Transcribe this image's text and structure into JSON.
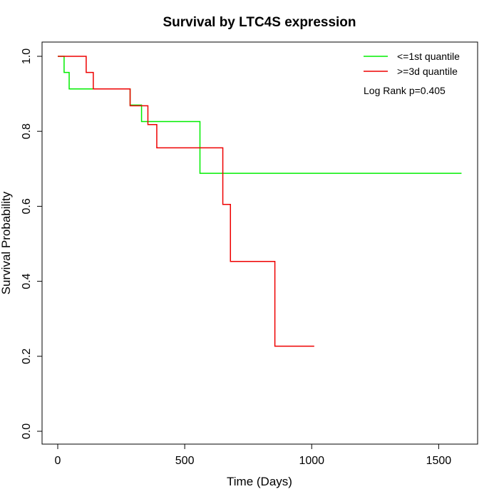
{
  "chart_data": {
    "type": "line",
    "title": "Survival by LTC4S expression",
    "xlabel": "Time (Days)",
    "ylabel": "Survival Probability",
    "xlim": [
      0,
      1640
    ],
    "ylim": [
      0,
      1.0
    ],
    "x_ticks": [
      0,
      500,
      1000,
      1500
    ],
    "y_ticks": [
      0.0,
      0.2,
      0.4,
      0.6,
      0.8,
      1.0
    ],
    "x_tick_labels": [
      "0",
      "500",
      "1000",
      "1500"
    ],
    "y_tick_labels": [
      "0.0",
      "0.2",
      "0.4",
      "0.6",
      "0.8",
      "1.0"
    ],
    "grid": false,
    "legend_position": "top-right",
    "annotation": "Log Rank p=0.405",
    "series": [
      {
        "name": "<=1st quantile",
        "color": "#00ee00",
        "step": true,
        "x": [
          0,
          25,
          45,
          285,
          330,
          560,
          1590
        ],
        "y": [
          1.0,
          0.957,
          0.913,
          0.87,
          0.826,
          0.688,
          0.688
        ]
      },
      {
        "name": ">=3d quantile",
        "color": "#ee0000",
        "step": true,
        "x": [
          0,
          112,
          140,
          285,
          355,
          390,
          650,
          680,
          855,
          1010
        ],
        "y": [
          1.0,
          0.957,
          0.913,
          0.868,
          0.818,
          0.756,
          0.605,
          0.453,
          0.227,
          0.227
        ]
      }
    ]
  }
}
